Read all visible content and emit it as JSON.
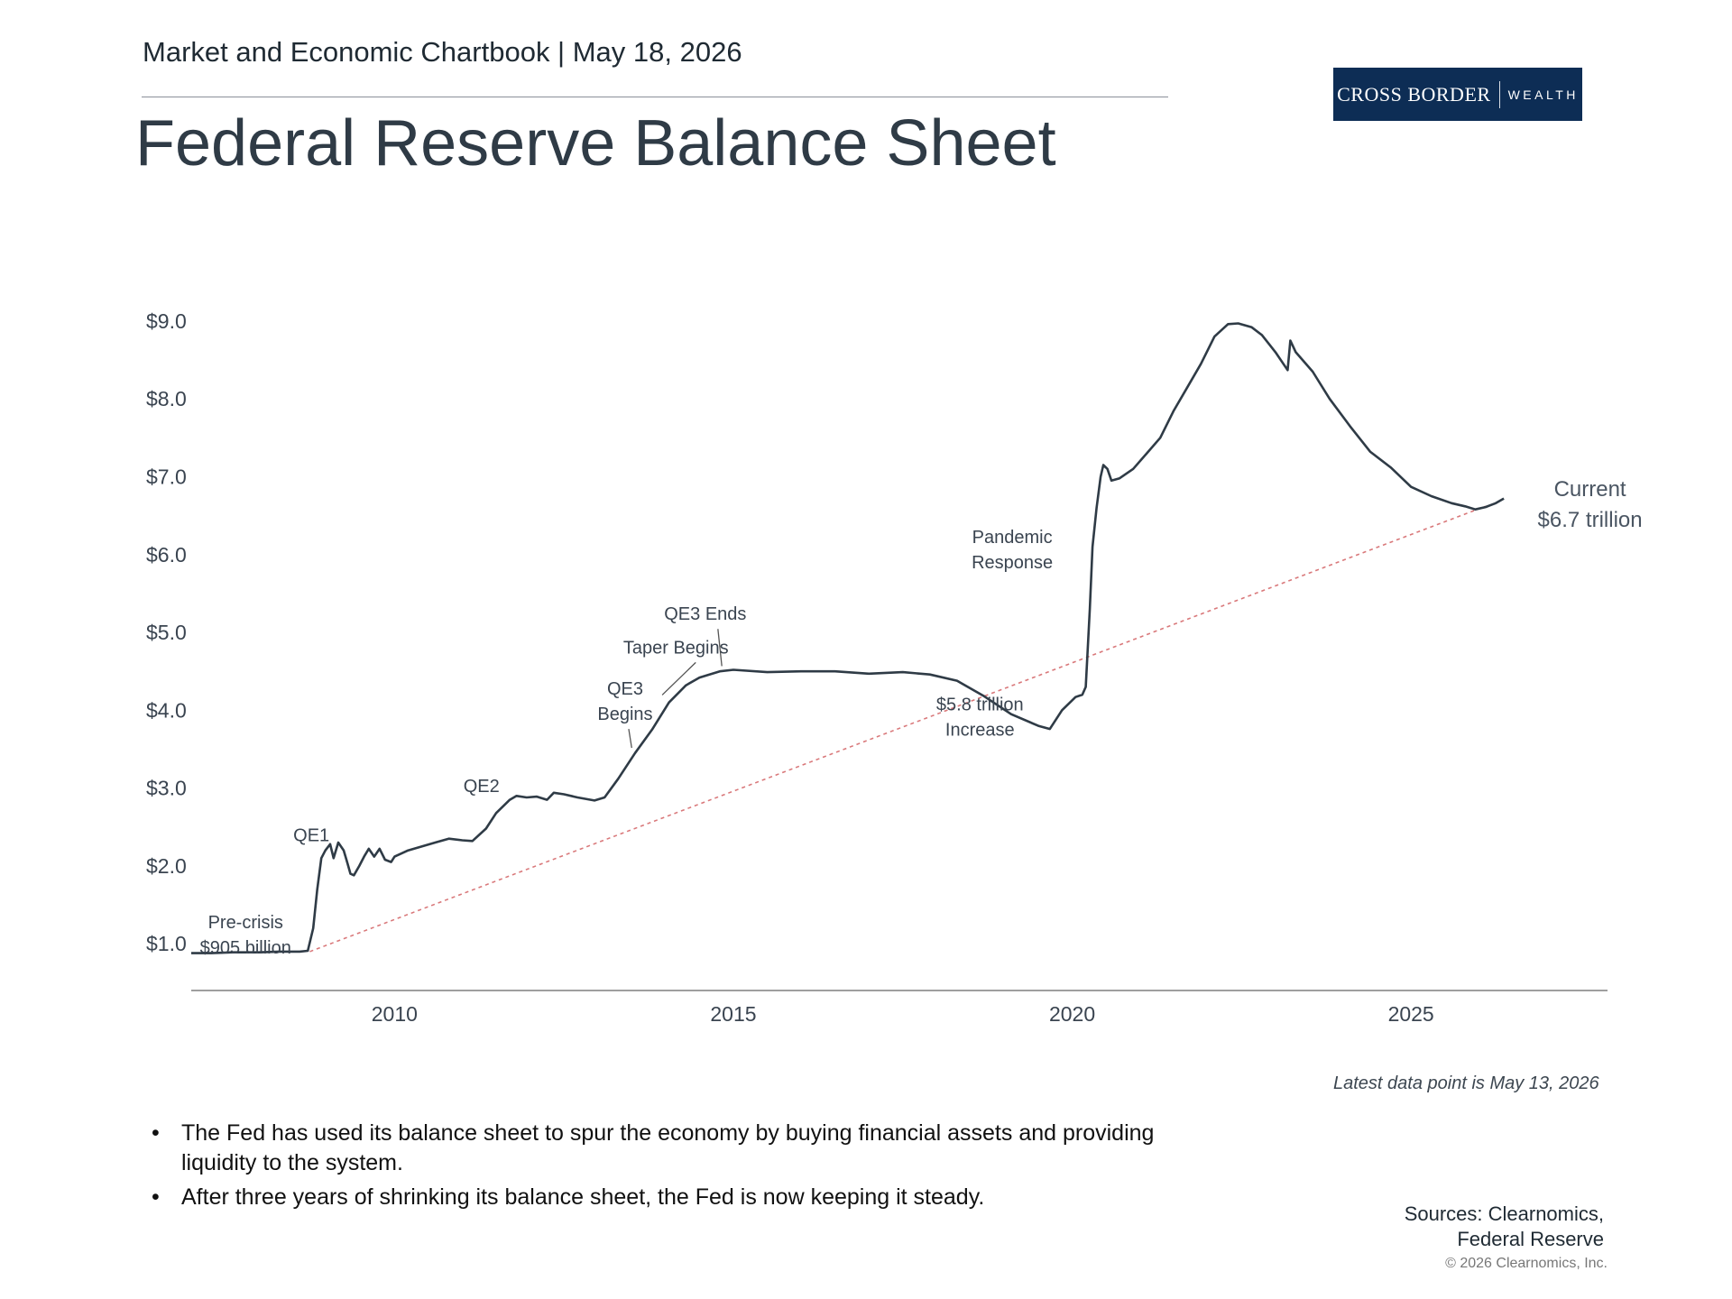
{
  "header": {
    "subtitle": "Market and Economic Chartbook | May 18, 2026",
    "title": "Federal Reserve Balance Sheet"
  },
  "logo": {
    "name": "CROSS BORDER",
    "tagline": "WEALTH",
    "bg_color": "#0d2d55"
  },
  "chart_data": {
    "type": "line",
    "title": "",
    "xlabel": "",
    "ylabel": "",
    "x_ticks": [
      2010,
      2015,
      2020,
      2025
    ],
    "y_ticks": [
      "$1.0",
      "$2.0",
      "$3.0",
      "$4.0",
      "$5.0",
      "$6.0",
      "$7.0",
      "$8.0",
      "$9.0"
    ],
    "y_tick_values": [
      1,
      2,
      3,
      4,
      5,
      6,
      7,
      8,
      9
    ],
    "xlim": [
      2007.0,
      2027.9
    ],
    "ylim": [
      0.4,
      9.3
    ],
    "grid": false,
    "line_color": "#2f3b46",
    "trend_color": "#d9787a",
    "series": [
      {
        "points": [
          [
            2007.0,
            0.88
          ],
          [
            2007.3,
            0.88
          ],
          [
            2007.6,
            0.89
          ],
          [
            2008.0,
            0.89
          ],
          [
            2008.3,
            0.9
          ],
          [
            2008.6,
            0.9
          ],
          [
            2008.72,
            0.91
          ],
          [
            2008.8,
            1.2
          ],
          [
            2008.86,
            1.7
          ],
          [
            2008.92,
            2.1
          ],
          [
            2008.98,
            2.2
          ],
          [
            2009.05,
            2.28
          ],
          [
            2009.1,
            2.1
          ],
          [
            2009.17,
            2.3
          ],
          [
            2009.25,
            2.2
          ],
          [
            2009.3,
            2.05
          ],
          [
            2009.35,
            1.9
          ],
          [
            2009.4,
            1.88
          ],
          [
            2009.48,
            2.0
          ],
          [
            2009.55,
            2.12
          ],
          [
            2009.62,
            2.22
          ],
          [
            2009.7,
            2.12
          ],
          [
            2009.78,
            2.22
          ],
          [
            2009.86,
            2.08
          ],
          [
            2009.95,
            2.05
          ],
          [
            2010.0,
            2.12
          ],
          [
            2010.2,
            2.2
          ],
          [
            2010.4,
            2.25
          ],
          [
            2010.6,
            2.3
          ],
          [
            2010.8,
            2.35
          ],
          [
            2011.0,
            2.33
          ],
          [
            2011.15,
            2.32
          ],
          [
            2011.35,
            2.48
          ],
          [
            2011.5,
            2.68
          ],
          [
            2011.7,
            2.85
          ],
          [
            2011.8,
            2.9
          ],
          [
            2011.95,
            2.88
          ],
          [
            2012.1,
            2.89
          ],
          [
            2012.25,
            2.85
          ],
          [
            2012.35,
            2.94
          ],
          [
            2012.5,
            2.92
          ],
          [
            2012.7,
            2.88
          ],
          [
            2012.95,
            2.84
          ],
          [
            2013.1,
            2.88
          ],
          [
            2013.3,
            3.12
          ],
          [
            2013.55,
            3.45
          ],
          [
            2013.8,
            3.75
          ],
          [
            2014.05,
            4.1
          ],
          [
            2014.3,
            4.32
          ],
          [
            2014.5,
            4.42
          ],
          [
            2014.8,
            4.5
          ],
          [
            2015.0,
            4.52
          ],
          [
            2015.5,
            4.49
          ],
          [
            2016.0,
            4.5
          ],
          [
            2016.5,
            4.5
          ],
          [
            2017.0,
            4.47
          ],
          [
            2017.5,
            4.49
          ],
          [
            2017.9,
            4.46
          ],
          [
            2018.3,
            4.38
          ],
          [
            2018.7,
            4.18
          ],
          [
            2019.1,
            3.95
          ],
          [
            2019.5,
            3.8
          ],
          [
            2019.67,
            3.76
          ],
          [
            2019.85,
            4.0
          ],
          [
            2020.05,
            4.17
          ],
          [
            2020.15,
            4.2
          ],
          [
            2020.2,
            4.3
          ],
          [
            2020.26,
            5.3
          ],
          [
            2020.3,
            6.1
          ],
          [
            2020.36,
            6.6
          ],
          [
            2020.42,
            7.0
          ],
          [
            2020.46,
            7.15
          ],
          [
            2020.52,
            7.1
          ],
          [
            2020.58,
            6.95
          ],
          [
            2020.7,
            6.98
          ],
          [
            2020.9,
            7.1
          ],
          [
            2021.1,
            7.3
          ],
          [
            2021.3,
            7.5
          ],
          [
            2021.5,
            7.85
          ],
          [
            2021.7,
            8.15
          ],
          [
            2021.9,
            8.45
          ],
          [
            2022.1,
            8.8
          ],
          [
            2022.3,
            8.96
          ],
          [
            2022.45,
            8.97
          ],
          [
            2022.65,
            8.92
          ],
          [
            2022.8,
            8.82
          ],
          [
            2023.0,
            8.6
          ],
          [
            2023.18,
            8.37
          ],
          [
            2023.22,
            8.75
          ],
          [
            2023.3,
            8.6
          ],
          [
            2023.55,
            8.35
          ],
          [
            2023.8,
            8.0
          ],
          [
            2024.1,
            7.65
          ],
          [
            2024.4,
            7.32
          ],
          [
            2024.7,
            7.12
          ],
          [
            2025.0,
            6.87
          ],
          [
            2025.3,
            6.75
          ],
          [
            2025.6,
            6.66
          ],
          [
            2025.8,
            6.62
          ],
          [
            2025.95,
            6.58
          ],
          [
            2026.1,
            6.61
          ],
          [
            2026.25,
            6.66
          ],
          [
            2026.37,
            6.72
          ]
        ]
      }
    ],
    "trend_line": {
      "from": [
        2008.75,
        0.9
      ],
      "to": [
        2026.1,
        6.62
      ]
    },
    "annotations": [
      {
        "id": "pre-crisis",
        "lines": [
          "Pre-crisis",
          "$905 billion"
        ],
        "x": 2006.95,
        "y": 1.2
      },
      {
        "id": "qe1",
        "lines": [
          "QE1"
        ],
        "x": 2008.52,
        "y": 2.32
      },
      {
        "id": "qe2",
        "lines": [
          "QE2"
        ],
        "x": 2011.03,
        "y": 2.95
      },
      {
        "id": "qe3-begins",
        "lines": [
          "QE3",
          "Begins"
        ],
        "x": 2012.95,
        "y": 4.2,
        "pointer_to": [
          2013.5,
          3.47
        ]
      },
      {
        "id": "taper-begins",
        "lines": [
          "Taper Begins"
        ],
        "x": 2013.3,
        "y": 4.73,
        "pointer_to": [
          2013.95,
          4.15
        ]
      },
      {
        "id": "qe3-ends",
        "lines": [
          "QE3 Ends"
        ],
        "x": 2014.0,
        "y": 5.16,
        "pointer_to": [
          2014.83,
          4.52
        ]
      },
      {
        "id": "increase",
        "lines": [
          "$5.8 trillion",
          "Increase"
        ],
        "x": 2017.72,
        "y": 4.0
      },
      {
        "id": "pandemic",
        "lines": [
          "Pandemic",
          "Response"
        ],
        "x": 2018.53,
        "y": 6.15
      },
      {
        "id": "current",
        "lines": [
          "Current",
          "$6.7 trillion"
        ],
        "x": 2026.55,
        "y": 6.75
      }
    ]
  },
  "footnote": "Latest data point is May 13, 2026",
  "bullets": [
    "The Fed has used its balance sheet to spur the economy by buying financial assets and providing liquidity to the system.",
    "After three years of shrinking its balance sheet, the Fed is now keeping it steady."
  ],
  "sources": [
    "Sources: Clearnomics,",
    "Federal Reserve"
  ],
  "copyright": "© 2026 Clearnomics, Inc."
}
